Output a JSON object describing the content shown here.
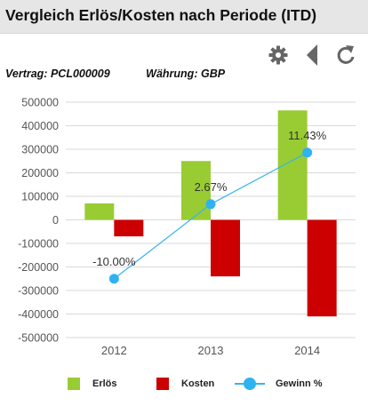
{
  "header": {
    "title": "Vergleich Erlös/Kosten nach Periode (ITD)"
  },
  "toolbar": {
    "icons": [
      "gear-icon",
      "collapse-left-icon",
      "refresh-icon"
    ]
  },
  "contract": {
    "label": "Vertrag:",
    "value": "PCL000009"
  },
  "currency": {
    "label": "Währung:",
    "value": "GBP"
  },
  "colors": {
    "erloes": "#99cc33",
    "kosten": "#cc0000",
    "gewinn": "#33b5f0",
    "grid": "#d9d9d9"
  },
  "chart_data": {
    "type": "bar",
    "categories": [
      "2012",
      "2013",
      "2014"
    ],
    "series": [
      {
        "name": "Erlös",
        "type": "bar",
        "values": [
          70000,
          250000,
          465000
        ]
      },
      {
        "name": "Kosten",
        "type": "bar",
        "values": [
          -70000,
          -240000,
          -410000
        ]
      },
      {
        "name": "Gewinn %",
        "type": "line",
        "values": [
          -10.0,
          2.67,
          11.43
        ],
        "labels": [
          "-10.00%",
          "2.67%",
          "11.43%"
        ]
      }
    ],
    "ylim": [
      -500000,
      500000
    ],
    "yticks": [
      "500000",
      "400000",
      "300000",
      "200000",
      "100000",
      "0",
      "-100000",
      "-200000",
      "-300000",
      "-400000",
      "-500000"
    ],
    "grid": true,
    "legend_position": "bottom"
  },
  "legend": {
    "erloes": "Erlös",
    "kosten": "Kosten",
    "gewinn": "Gewinn %"
  }
}
